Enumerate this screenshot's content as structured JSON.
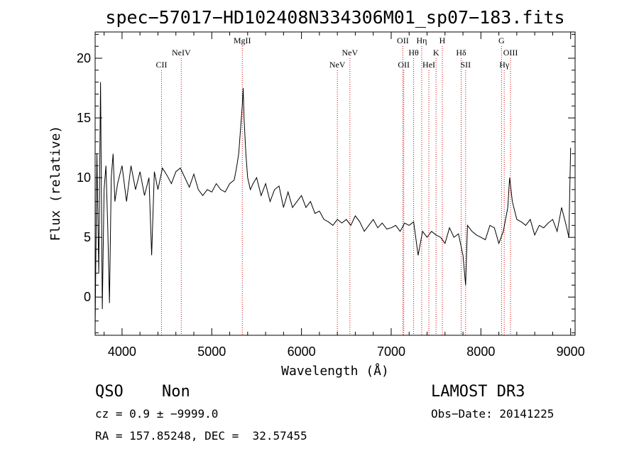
{
  "chart_data": {
    "type": "line",
    "title": "spec−57017−HD102408N334306M01_sp07−183.fits",
    "xlabel": "Wavelength (Å)",
    "ylabel": "Flux (relative)",
    "xlim": [
      3700,
      9050
    ],
    "ylim": [
      -3.2,
      22.2
    ],
    "x_ticks": [
      4000,
      5000,
      6000,
      7000,
      8000,
      9000
    ],
    "y_ticks": [
      0,
      5,
      10,
      15,
      20
    ],
    "grid": false,
    "series": [
      {
        "x": [
          3700,
          3720,
          3740,
          3760,
          3780,
          3800,
          3820,
          3840,
          3860,
          3880,
          3900,
          3920,
          3950,
          4000,
          4050,
          4100,
          4150,
          4200,
          4250,
          4300,
          4330,
          4360,
          4400,
          4450,
          4500,
          4550,
          4600,
          4650,
          4700,
          4750,
          4800,
          4850,
          4900,
          4950,
          5000,
          5050,
          5100,
          5150,
          5200,
          5250,
          5280,
          5300,
          5320,
          5340,
          5350,
          5360,
          5380,
          5400,
          5430,
          5460,
          5500,
          5550,
          5600,
          5650,
          5700,
          5750,
          5800,
          5850,
          5900,
          5950,
          6000,
          6050,
          6100,
          6150,
          6200,
          6250,
          6300,
          6350,
          6400,
          6450,
          6500,
          6550,
          6600,
          6650,
          6700,
          6750,
          6800,
          6850,
          6900,
          6950,
          7000,
          7050,
          7100,
          7150,
          7200,
          7250,
          7300,
          7350,
          7400,
          7450,
          7500,
          7550,
          7600,
          7650,
          7700,
          7750,
          7800,
          7830,
          7850,
          7900,
          7950,
          8000,
          8050,
          8100,
          8150,
          8200,
          8250,
          8300,
          8320,
          8350,
          8400,
          8450,
          8500,
          8550,
          8600,
          8650,
          8700,
          8750,
          8800,
          8850,
          8900,
          8950,
          8980,
          9000
        ],
        "y": [
          -2.5,
          12,
          2,
          18,
          -1,
          9,
          11,
          6,
          -0.5,
          10,
          12,
          8,
          9.5,
          11,
          8,
          11,
          9,
          10.5,
          8.5,
          10,
          3.5,
          10.5,
          9,
          10.8,
          10.2,
          9.5,
          10.5,
          10.8,
          10,
          9.2,
          10.3,
          9,
          8.5,
          9,
          8.8,
          9.5,
          9,
          8.8,
          9.5,
          9.8,
          11,
          12,
          14,
          16,
          17.5,
          15,
          12,
          10,
          9,
          9.5,
          10,
          8.5,
          9.5,
          8,
          9,
          9.3,
          7.5,
          8.8,
          7.5,
          8,
          8.5,
          7.5,
          8,
          7,
          7.2,
          6.5,
          6.3,
          6,
          6.5,
          6.2,
          6.5,
          6,
          6.8,
          6.3,
          5.5,
          6,
          6.5,
          5.8,
          6.2,
          5.7,
          5.8,
          6,
          5.5,
          6.2,
          6,
          6.3,
          3.5,
          5.5,
          5,
          5.5,
          5.2,
          5,
          4.5,
          5.8,
          5,
          5.3,
          3.5,
          1,
          6,
          5.5,
          5.2,
          5,
          4.8,
          6,
          5.8,
          4.5,
          5.5,
          7.5,
          10,
          8,
          6.5,
          6.3,
          6,
          6.5,
          5.2,
          6,
          5.8,
          6.2,
          6.5,
          5.5,
          7.5,
          6,
          5,
          12.5
        ]
      }
    ],
    "lines": [
      {
        "label": "CII",
        "x": 4440,
        "row": 3
      },
      {
        "label": "NeIV",
        "x": 4660,
        "row": 2
      },
      {
        "label": "MgII",
        "x": 5340,
        "row": 1
      },
      {
        "label": "NeV",
        "x": 6400,
        "row": 3
      },
      {
        "label": "NeV",
        "x": 6540,
        "row": 2
      },
      {
        "label": "OII",
        "x": 7130,
        "row": 1
      },
      {
        "label": "OII",
        "x": 7140,
        "row": 3
      },
      {
        "label": "Hθ",
        "x": 7250,
        "row": 2
      },
      {
        "label": "Hη",
        "x": 7340,
        "row": 1
      },
      {
        "label": "HeI",
        "x": 7420,
        "row": 3
      },
      {
        "label": "K",
        "x": 7500,
        "row": 2
      },
      {
        "label": "H",
        "x": 7570,
        "row": 1
      },
      {
        "label": "Hδ",
        "x": 7780,
        "row": 2
      },
      {
        "label": "SII",
        "x": 7830,
        "row": 3
      },
      {
        "label": "G",
        "x": 8230,
        "row": 1
      },
      {
        "label": "Hγ",
        "x": 8260,
        "row": 3
      },
      {
        "label": "OIII",
        "x": 8330,
        "row": 2
      }
    ]
  },
  "footer": {
    "class": "QSO",
    "subclass": "Non",
    "survey": "LAMOST DR3",
    "cz": "cz = 0.9 ± −9999.0",
    "obs_date": "Obs−Date: 20141225",
    "radec": "RA = 157.85248, DEC =  32.57455"
  },
  "colors": {
    "spectrum": "#000000",
    "line_marker": "#cc0000"
  }
}
